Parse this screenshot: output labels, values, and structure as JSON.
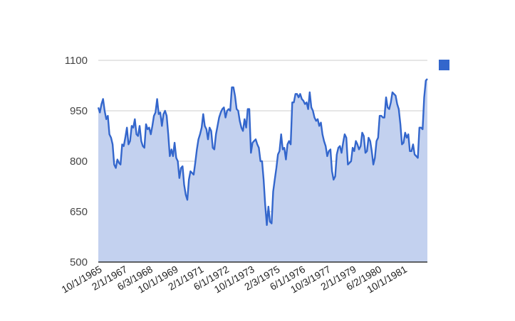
{
  "chart_data": {
    "type": "area",
    "title": "",
    "xlabel": "",
    "ylabel": "",
    "ylim": [
      500,
      1100
    ],
    "y_ticks": [
      500,
      650,
      800,
      950,
      1100
    ],
    "x_tick_labels": [
      "10/1/1965",
      "2/1/1967",
      "6/3/1968",
      "10/1/1969",
      "2/1/1971",
      "6/1/1972",
      "10/1/1973",
      "2/3/1975",
      "6/1/1976",
      "10/3/1977",
      "2/1/1979",
      "6/2/1980",
      "10/1/1981"
    ],
    "legend": {
      "position": "right",
      "entries": [
        ""
      ]
    },
    "grid": true,
    "colors": {
      "line": "#3366cc",
      "fill": "#c3d1ef",
      "grid": "#cccccc",
      "baseline": "#333333"
    },
    "series": [
      {
        "x_start": "10/1/1965",
        "x_end": "5/1/1982",
        "values": [
          960,
          945,
          970,
          985,
          950,
          925,
          935,
          880,
          870,
          850,
          790,
          780,
          805,
          795,
          790,
          850,
          845,
          870,
          900,
          850,
          860,
          905,
          900,
          925,
          880,
          875,
          905,
          860,
          845,
          840,
          910,
          895,
          900,
          880,
          905,
          935,
          945,
          985,
          940,
          945,
          905,
          940,
          950,
          935,
          880,
          815,
          835,
          815,
          855,
          810,
          800,
          750,
          780,
          785,
          730,
          700,
          685,
          745,
          770,
          765,
          760,
          795,
          835,
          865,
          880,
          900,
          940,
          905,
          895,
          865,
          900,
          890,
          840,
          835,
          880,
          905,
          930,
          945,
          955,
          960,
          930,
          950,
          955,
          950,
          1020,
          1020,
          995,
          955,
          950,
          920,
          900,
          890,
          925,
          900,
          955,
          955,
          825,
          855,
          860,
          865,
          850,
          840,
          800,
          800,
          745,
          670,
          610,
          665,
          620,
          615,
          710,
          745,
          780,
          820,
          830,
          880,
          835,
          840,
          805,
          850,
          860,
          850,
          975,
          975,
          1000,
          1000,
          990,
          1000,
          985,
          980,
          970,
          975,
          955,
          1005,
          960,
          950,
          930,
          920,
          925,
          905,
          915,
          880,
          860,
          845,
          815,
          830,
          835,
          770,
          745,
          755,
          820,
          840,
          845,
          825,
          855,
          880,
          870,
          790,
          795,
          800,
          840,
          830,
          860,
          850,
          835,
          845,
          885,
          875,
          825,
          830,
          870,
          860,
          830,
          790,
          810,
          860,
          870,
          935,
          935,
          930,
          930,
          990,
          960,
          955,
          975,
          1005,
          1000,
          995,
          970,
          955,
          910,
          850,
          855,
          885,
          870,
          880,
          830,
          830,
          850,
          820,
          815,
          810,
          900,
          900,
          895,
          990,
          1040,
          1045
        ]
      }
    ]
  }
}
